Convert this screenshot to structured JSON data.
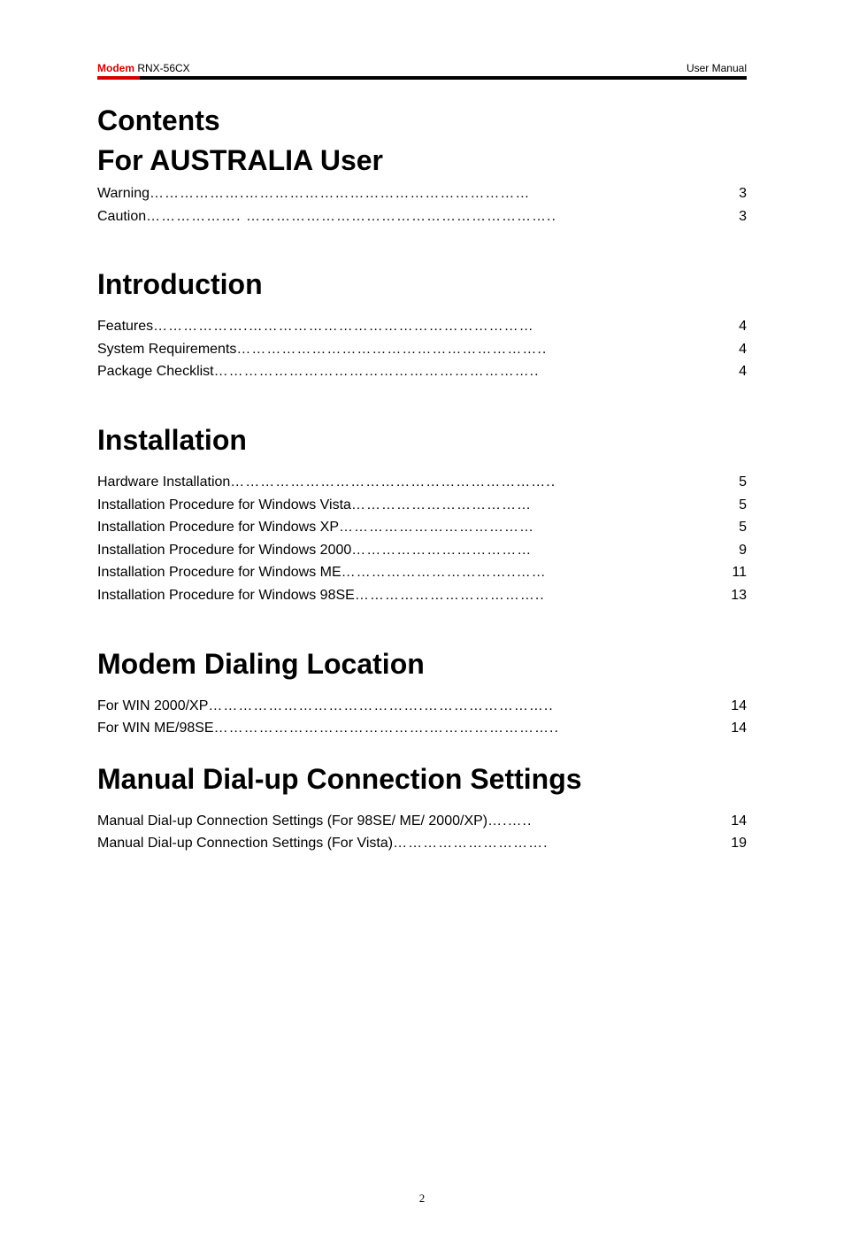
{
  "header": {
    "brand": "Modem",
    "model": " RNX-56CX",
    "right": "User  Manual"
  },
  "contents_title": "Contents",
  "sections": [
    {
      "heading": "For AUSTRALIA User",
      "heading_class": "section-heading",
      "entries": [
        {
          "label": "Warning ",
          "leader": "……………….…………………………………………………",
          "page": "3"
        },
        {
          "label": "Caution",
          "leader": "………………. ……………………………………………………..",
          "page": "3"
        }
      ],
      "gap_after": "gap-md"
    },
    {
      "heading": "Introduction",
      "heading_class": "section-heading later",
      "entries": [
        {
          "label": "Features ",
          "leader": "……………….…………………………………………………",
          "page": "4"
        },
        {
          "label": "System Requirements ",
          "leader": "……………………………………………………..",
          "page": "4"
        },
        {
          "label": "Package Checklist ",
          "leader": "………………………………………………………..",
          "page": "4"
        }
      ],
      "gap_after": "gap-md"
    },
    {
      "heading": "Installation",
      "heading_class": "section-heading later",
      "entries": [
        {
          "label": "Hardware Installation ",
          "leader": "………………………………………………………..",
          "page": "5"
        },
        {
          "label": "Installation Procedure for Windows Vista",
          "leader": "………………………………",
          "page": "5"
        },
        {
          "label": "Installation Procedure for Windows XP ",
          "leader": "…………………………………",
          "page": "5"
        },
        {
          "label": "Installation Procedure for Windows 2000",
          "leader": "………………………………",
          "page": "9"
        },
        {
          "label": "Installation Procedure for Windows ME ",
          "leader": "……………………………..……",
          "page": "11"
        },
        {
          "label": "Installation Procedure for Windows 98SE ",
          "leader": "………………………………..",
          "page": "13"
        }
      ],
      "gap_after": "gap-md"
    },
    {
      "heading": "Modem Dialing Location",
      "heading_class": "section-heading later",
      "entries": [
        {
          "label": "For WIN 2000/XP ",
          "leader": "…………………………………….……………………..",
          "page": "14"
        },
        {
          "label": "For WIN ME/98SE ",
          "leader": "…………………………………….……………………..",
          "page": "14"
        }
      ],
      "gap_after": "gap-sm"
    },
    {
      "heading": "Manual Dial-up Connection Settings",
      "heading_class": "section-heading tight",
      "entries": [
        {
          "label": "Manual Dial-up Connection Settings (For 98SE/ ME/ 2000/XP) ",
          "leader": "….…..",
          "page": "14"
        },
        {
          "label": "Manual Dial-up Connection Settings (For Vista)",
          "leader": "………………………….",
          "page": "19"
        }
      ],
      "gap_after": ""
    }
  ],
  "footer_page_number": "2"
}
